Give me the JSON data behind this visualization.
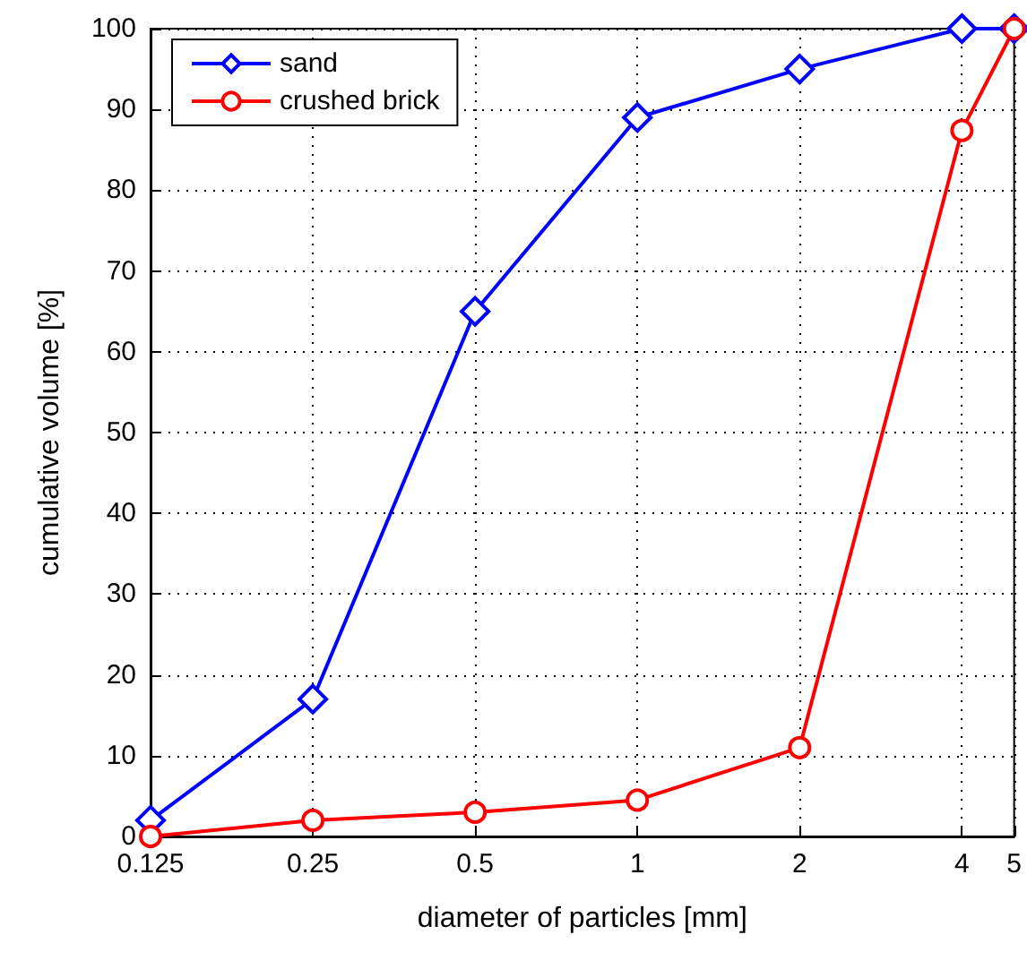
{
  "chart_data": {
    "type": "line",
    "xlabel": "diameter of particles [mm]",
    "ylabel": "cumulative volume [%]",
    "log": "x",
    "xlim": [
      0.125,
      5
    ],
    "xticks": [
      0.125,
      0.25,
      0.5,
      1,
      2,
      4,
      5
    ],
    "ylim": [
      0,
      100
    ],
    "yticks": [
      0,
      10,
      20,
      30,
      40,
      50,
      60,
      70,
      80,
      90,
      100
    ],
    "grid": true,
    "legend": "top left",
    "line_style": "solid",
    "x": [
      0.125,
      0.25,
      0.5,
      1,
      2,
      4,
      5
    ],
    "series": [
      {
        "name": "sand",
        "color": "#0000ff",
        "marker": "diamond",
        "values": [
          2,
          17,
          65,
          89,
          95,
          100,
          100
        ]
      },
      {
        "name": "crushed brick",
        "color": "#ff0000",
        "marker": "circle",
        "values": [
          0,
          2,
          3,
          4.5,
          11,
          87.4,
          100
        ]
      }
    ]
  }
}
